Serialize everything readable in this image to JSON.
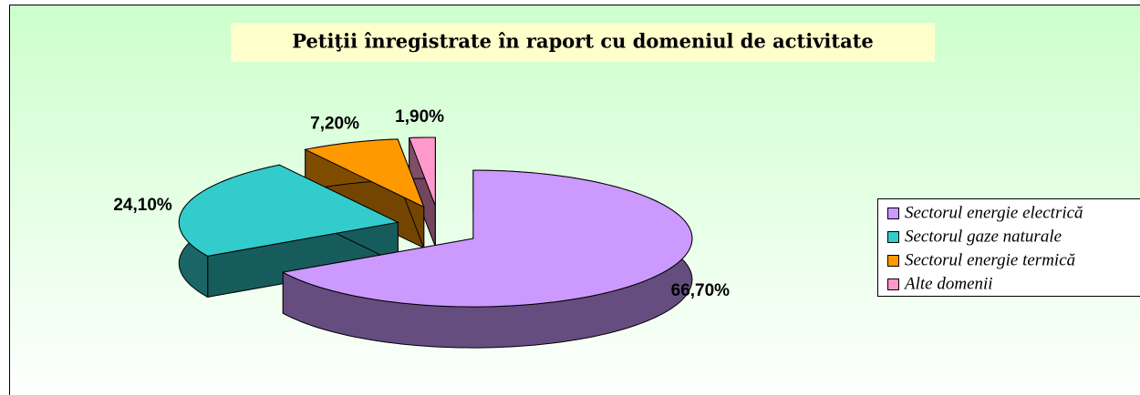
{
  "chart_data": {
    "type": "pie3d",
    "title": "Petiţii înregistrate în raport cu domeniul de activitate",
    "categories": [
      "Sectorul energie electrică",
      "Sectorul gaze naturale",
      "Sectorul energie termică",
      "Alte domenii"
    ],
    "values": [
      66.7,
      24.1,
      7.2,
      1.9
    ],
    "value_labels": [
      "66,70%",
      "24,10%",
      "7,20%",
      "1,90%"
    ],
    "colors": [
      "#cc99ff",
      "#33cccc",
      "#ff9900",
      "#ff99cc"
    ],
    "legend": "right"
  }
}
